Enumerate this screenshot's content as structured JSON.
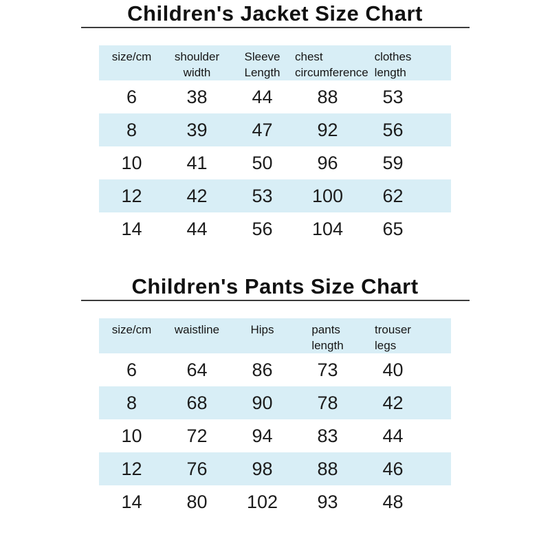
{
  "chart_data": [
    {
      "type": "table",
      "title": "Children's Jacket Size Chart",
      "columns": [
        "size/cm",
        "shoulder width",
        "Sleeve Length",
        "chest circumference",
        "clothes length"
      ],
      "rows": [
        [
          6,
          38,
          44,
          88,
          53
        ],
        [
          8,
          39,
          47,
          92,
          56
        ],
        [
          10,
          41,
          50,
          96,
          59
        ],
        [
          12,
          42,
          53,
          100,
          62
        ],
        [
          14,
          44,
          56,
          104,
          65
        ]
      ]
    },
    {
      "type": "table",
      "title": "Children's Pants Size Chart",
      "columns": [
        "size/cm",
        "waistline",
        "Hips",
        "pants length",
        "trouser legs"
      ],
      "rows": [
        [
          6,
          64,
          86,
          73,
          40
        ],
        [
          8,
          68,
          90,
          78,
          42
        ],
        [
          10,
          72,
          94,
          83,
          44
        ],
        [
          12,
          76,
          98,
          88,
          46
        ],
        [
          14,
          80,
          102,
          93,
          48
        ]
      ]
    }
  ],
  "colors": {
    "row_highlight": "#d8eef6",
    "text": "#1c1c1c",
    "title_rule": "#3b3b3b",
    "background": "#ffffff"
  }
}
